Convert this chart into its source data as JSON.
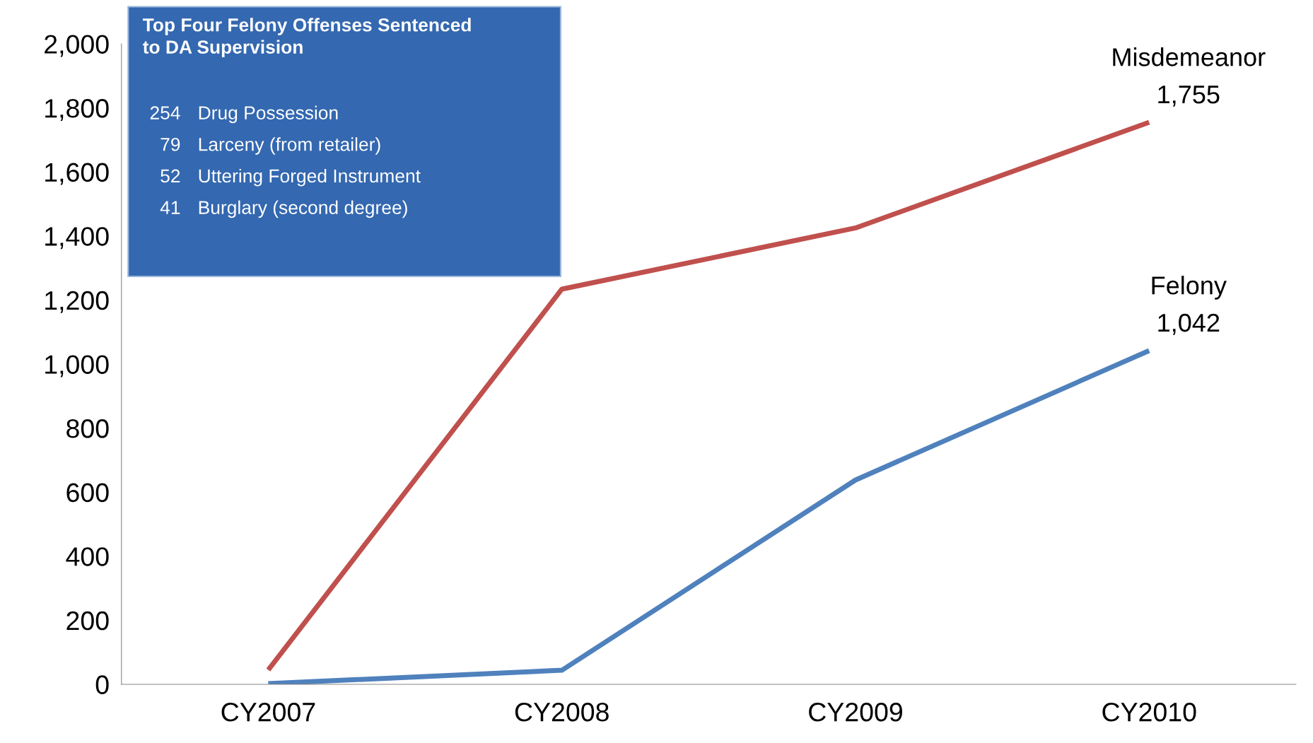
{
  "chart_data": {
    "type": "line",
    "categories": [
      "CY2007",
      "CY2008",
      "CY2009",
      "CY2010"
    ],
    "series": [
      {
        "name": "Misdemeanor",
        "color": "#c0504d",
        "values": [
          45,
          1234,
          1425,
          1755
        ],
        "value_labels": [
          null,
          null,
          null,
          "1,755"
        ]
      },
      {
        "name": "Felony",
        "color": "#4f81bd",
        "values": [
          2,
          44,
          638,
          1042
        ],
        "value_labels": [
          null,
          null,
          null,
          "1,042"
        ]
      }
    ],
    "ylim": [
      0,
      2000
    ],
    "yticks": [
      {
        "value": 0,
        "label": "0"
      },
      {
        "value": 200,
        "label": "200"
      },
      {
        "value": 400,
        "label": "400"
      },
      {
        "value": 600,
        "label": "600"
      },
      {
        "value": 800,
        "label": "800"
      },
      {
        "value": 1000,
        "label": "1,000"
      },
      {
        "value": 1200,
        "label": "1,200"
      },
      {
        "value": 1400,
        "label": "1,400"
      },
      {
        "value": 1600,
        "label": "1,600"
      },
      {
        "value": 1800,
        "label": "1,800"
      },
      {
        "value": 2000,
        "label": "2,000"
      }
    ],
    "annotations": [
      "Top Four Felony Offenses Sentenced\nto DA Supervision",
      "254 Drug Possession",
      "79 Larceny (from retailer)",
      "52 Uttering Forged Instrument",
      "41 Burglary (second degree)"
    ],
    "grid": false,
    "legend": false,
    "marker": "none",
    "line_style": "solid"
  }
}
